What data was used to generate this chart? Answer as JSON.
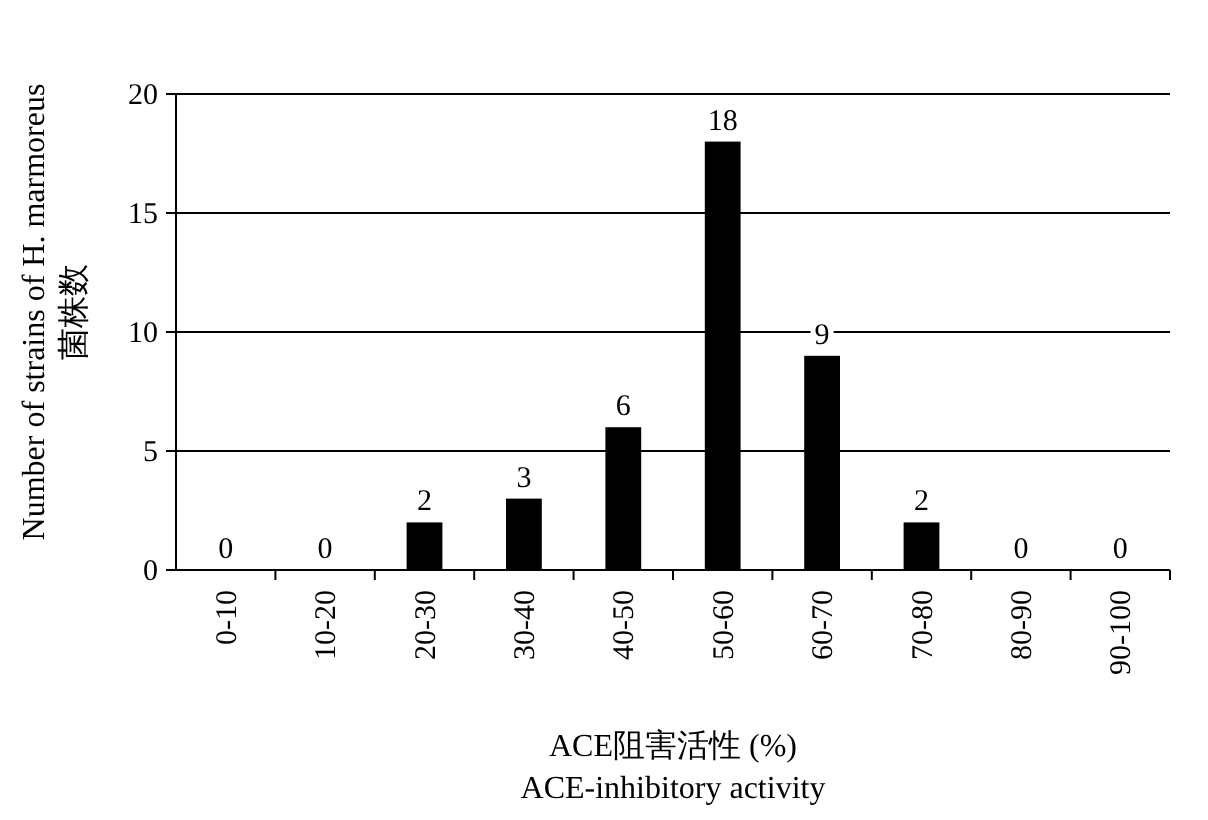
{
  "chart_data": {
    "type": "bar",
    "xlabel": "ACE阻害活性 (%)\nACE-inhibitory activity",
    "ylabel": "Number of strains of H. marmoreus\n菌株数",
    "categories": [
      "0-10",
      "10-20",
      "20-30",
      "30-40",
      "40-50",
      "50-60",
      "60-70",
      "70-80",
      "80-90",
      "90-100"
    ],
    "values": [
      0,
      0,
      2,
      3,
      6,
      18,
      9,
      2,
      0,
      0
    ],
    "color": "#000000",
    "ylim": [
      0,
      20
    ],
    "yticks": [
      0,
      5,
      10,
      15,
      20
    ],
    "grid": "y",
    "data_labels": true
  }
}
